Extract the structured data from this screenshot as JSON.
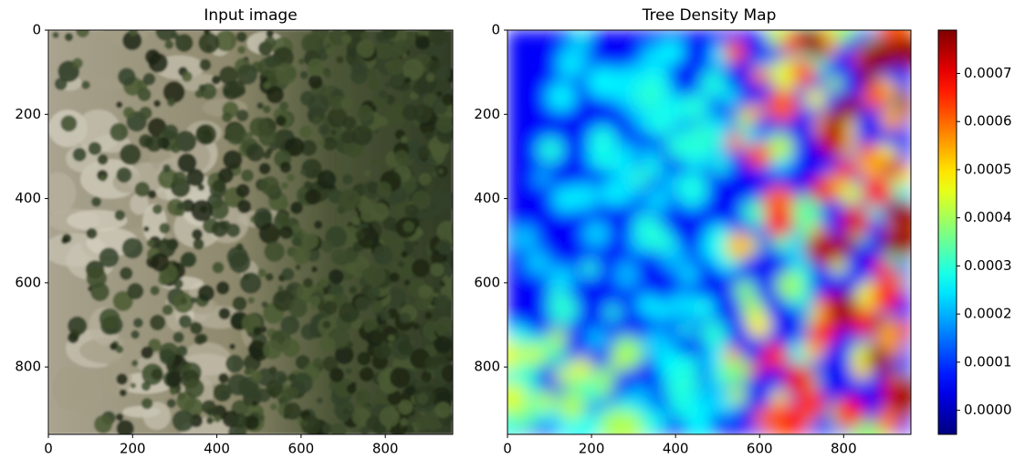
{
  "chart_data": [
    {
      "type": "image",
      "title": "Input image",
      "xlim": [
        0,
        960
      ],
      "ylim": [
        960,
        0
      ],
      "xticks": [
        0,
        200,
        400,
        600,
        800
      ],
      "yticks": [
        0,
        200,
        400,
        600,
        800
      ]
    },
    {
      "type": "heatmap",
      "title": "Tree Density Map",
      "xlim": [
        0,
        960
      ],
      "ylim": [
        960,
        0
      ],
      "xticks": [
        0,
        200,
        400,
        600,
        800
      ],
      "yticks": [
        0,
        200,
        400,
        600,
        800
      ],
      "colormap": "jet",
      "clim": [
        -5e-05,
        0.00079
      ],
      "cticks": [
        {
          "value": 0,
          "label": "0.0000"
        },
        0.0001,
        0.0002,
        0.0003,
        0.0004,
        0.0005,
        0.0006,
        0.0007
      ]
    }
  ]
}
